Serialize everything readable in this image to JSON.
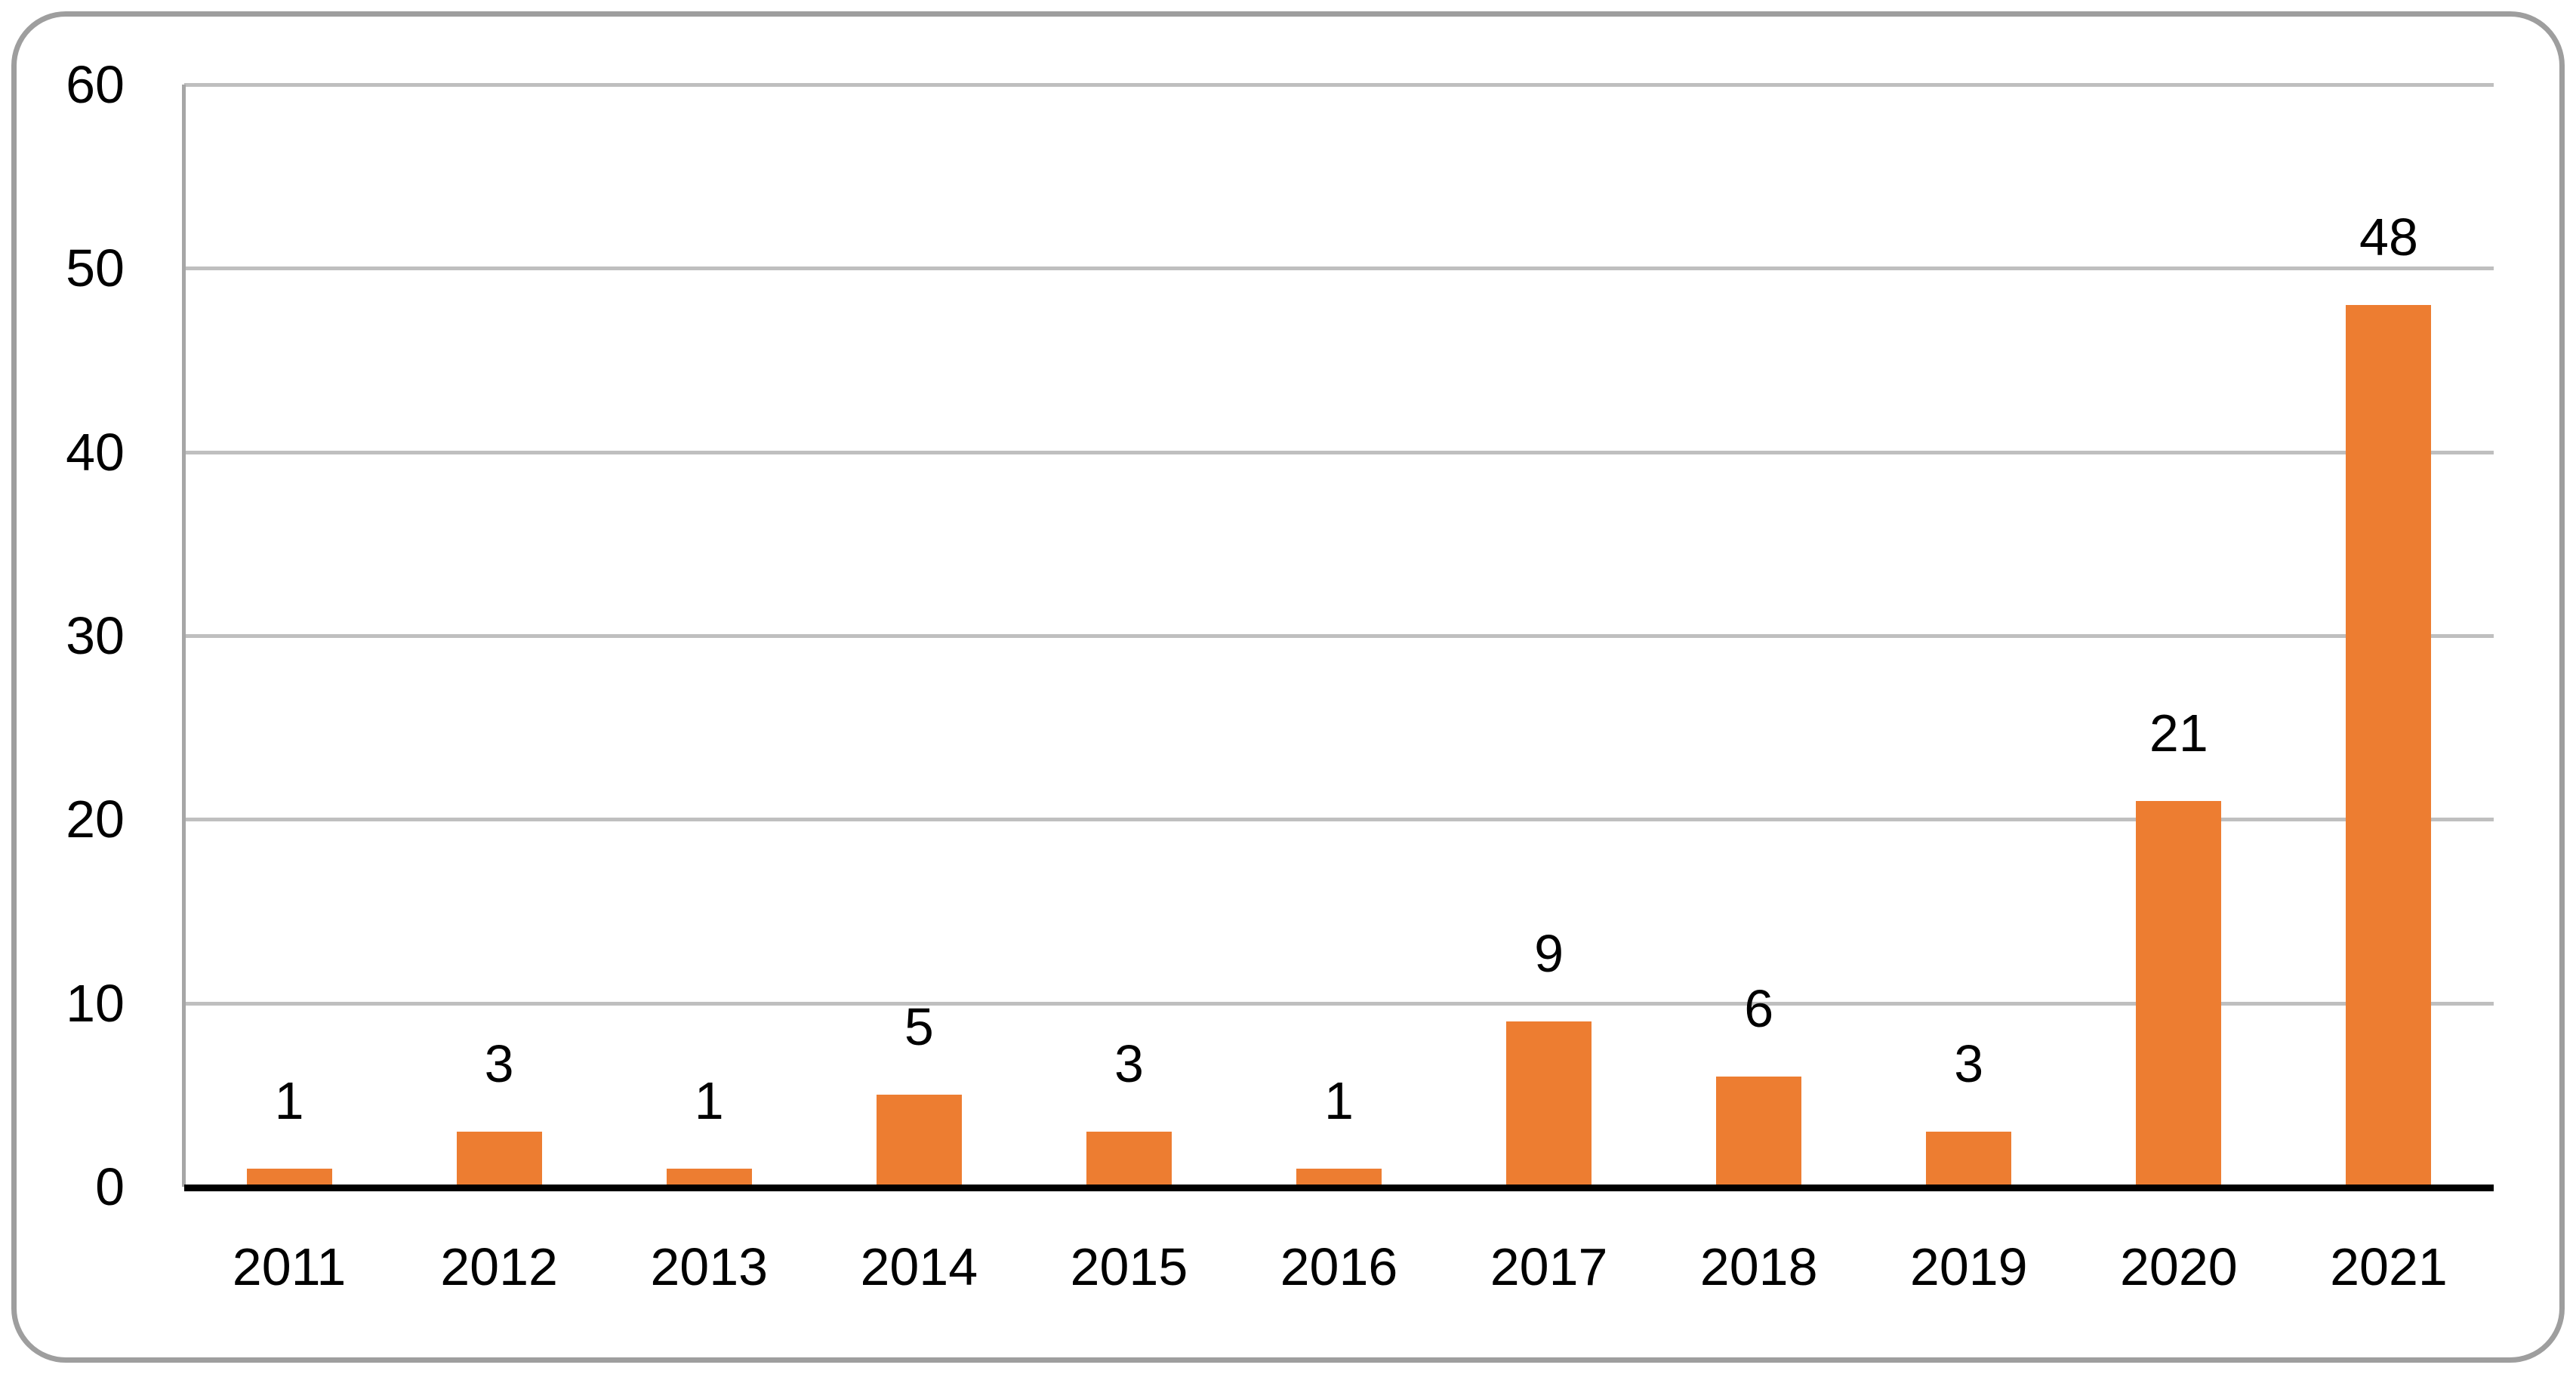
{
  "chart_data": {
    "type": "bar",
    "title": "",
    "xlabel": "",
    "ylabel": "",
    "categories": [
      "2011",
      "2012",
      "2013",
      "2014",
      "2015",
      "2016",
      "2017",
      "2018",
      "2019",
      "2020",
      "2021"
    ],
    "values": [
      1,
      3,
      1,
      5,
      3,
      1,
      9,
      6,
      3,
      21,
      48
    ],
    "data_labels": [
      "1",
      "3",
      "1",
      "5",
      "3",
      "1",
      "9",
      "6",
      "3",
      "21",
      "48"
    ],
    "ylim": [
      0,
      60
    ],
    "yticks": [
      0,
      10,
      20,
      30,
      40,
      50,
      60
    ],
    "grid": true,
    "legend": "none",
    "series_name": ""
  },
  "colors": {
    "bar": "#ED7D31",
    "gridline": "#BFBFBF",
    "y_axis_line": "#A6A6A6",
    "x_axis_line": "#000000",
    "frame_border": "#9E9E9E",
    "background": "#FFFFFF",
    "text": "#000000"
  }
}
